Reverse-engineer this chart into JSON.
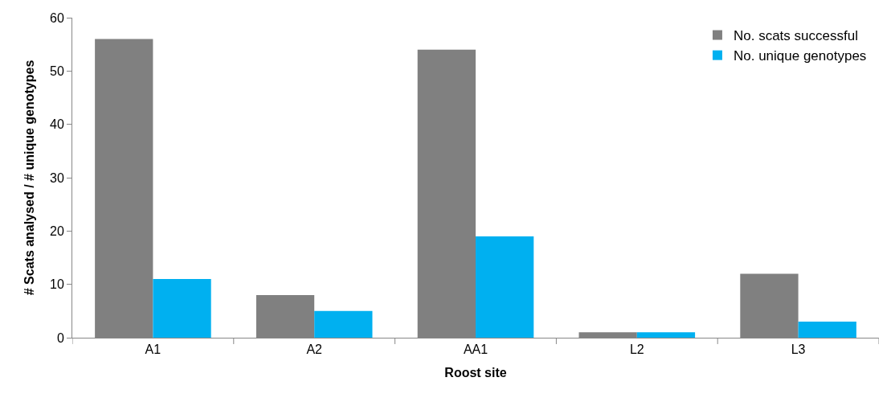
{
  "chart_data": {
    "type": "bar",
    "xlabel": "Roost site",
    "ylabel": "# Scats analysed / # unique genotypes",
    "categories": [
      "A1",
      "A2",
      "AA1",
      "L2",
      "L3"
    ],
    "series": [
      {
        "name": "No. scats successful",
        "color": "#808080",
        "values": [
          56,
          8,
          54,
          1,
          12
        ]
      },
      {
        "name": "No. unique genotypes",
        "color": "#00b0f0",
        "values": [
          11,
          5,
          19,
          1,
          3
        ]
      }
    ],
    "ylim": [
      0,
      60
    ],
    "yticks": [
      0,
      10,
      20,
      30,
      40,
      50,
      60
    ],
    "legend": "top right"
  }
}
